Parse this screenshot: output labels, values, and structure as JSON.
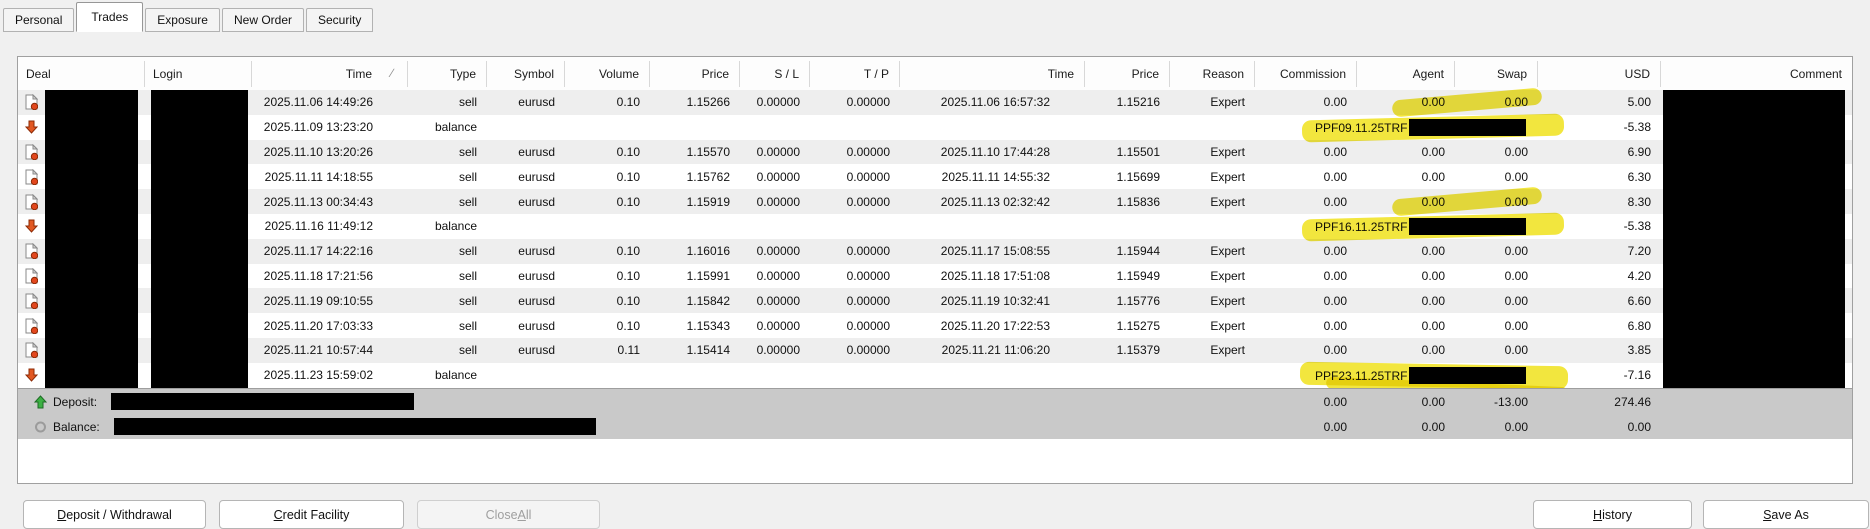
{
  "tabs": {
    "items": [
      {
        "label": "Personal",
        "active": false
      },
      {
        "label": "Trades",
        "active": true
      },
      {
        "label": "Exposure",
        "active": false
      },
      {
        "label": "New Order",
        "active": false
      },
      {
        "label": "Security",
        "active": false
      }
    ]
  },
  "table": {
    "columns": [
      "Deal",
      "Login",
      "Time",
      "Type",
      "Symbol",
      "Volume",
      "Price",
      "S / L",
      "T / P",
      "Time",
      "Price",
      "Reason",
      "Commission",
      "Agent",
      "Swap",
      "USD",
      "Comment"
    ],
    "sort_indicator": "∕",
    "rows": [
      {
        "kind": "trade",
        "time": "2025.11.06 14:49:26",
        "type": "sell",
        "symbol": "eurusd",
        "volume": "0.10",
        "price": "1.15266",
        "sl": "0.00000",
        "tp": "0.00000",
        "close_time": "2025.11.06 16:57:32",
        "close_price": "1.15216",
        "reason": "Expert",
        "commission": "0.00",
        "agent": "0.00",
        "swap": "0.00",
        "usd": "5.00"
      },
      {
        "kind": "balance",
        "time": "2025.11.09 13:23:20",
        "type": "balance",
        "ppf": "PPF09.11.25TRF",
        "usd": "-5.38"
      },
      {
        "kind": "trade",
        "time": "2025.11.10 13:20:26",
        "type": "sell",
        "symbol": "eurusd",
        "volume": "0.10",
        "price": "1.15570",
        "sl": "0.00000",
        "tp": "0.00000",
        "close_time": "2025.11.10 17:44:28",
        "close_price": "1.15501",
        "reason": "Expert",
        "commission": "0.00",
        "agent": "0.00",
        "swap": "0.00",
        "usd": "6.90"
      },
      {
        "kind": "trade",
        "time": "2025.11.11 14:18:55",
        "type": "sell",
        "symbol": "eurusd",
        "volume": "0.10",
        "price": "1.15762",
        "sl": "0.00000",
        "tp": "0.00000",
        "close_time": "2025.11.11 14:55:32",
        "close_price": "1.15699",
        "reason": "Expert",
        "commission": "0.00",
        "agent": "0.00",
        "swap": "0.00",
        "usd": "6.30"
      },
      {
        "kind": "trade",
        "time": "2025.11.13 00:34:43",
        "type": "sell",
        "symbol": "eurusd",
        "volume": "0.10",
        "price": "1.15919",
        "sl": "0.00000",
        "tp": "0.00000",
        "close_time": "2025.11.13 02:32:42",
        "close_price": "1.15836",
        "reason": "Expert",
        "commission": "0.00",
        "agent": "0.00",
        "swap": "0.00",
        "usd": "8.30"
      },
      {
        "kind": "balance",
        "time": "2025.11.16 11:49:12",
        "type": "balance",
        "ppf": "PPF16.11.25TRF",
        "usd": "-5.38"
      },
      {
        "kind": "trade",
        "time": "2025.11.17 14:22:16",
        "type": "sell",
        "symbol": "eurusd",
        "volume": "0.10",
        "price": "1.16016",
        "sl": "0.00000",
        "tp": "0.00000",
        "close_time": "2025.11.17 15:08:55",
        "close_price": "1.15944",
        "reason": "Expert",
        "commission": "0.00",
        "agent": "0.00",
        "swap": "0.00",
        "usd": "7.20"
      },
      {
        "kind": "trade",
        "time": "2025.11.18 17:21:56",
        "type": "sell",
        "symbol": "eurusd",
        "volume": "0.10",
        "price": "1.15991",
        "sl": "0.00000",
        "tp": "0.00000",
        "close_time": "2025.11.18 17:51:08",
        "close_price": "1.15949",
        "reason": "Expert",
        "commission": "0.00",
        "agent": "0.00",
        "swap": "0.00",
        "usd": "4.20"
      },
      {
        "kind": "trade",
        "time": "2025.11.19 09:10:55",
        "type": "sell",
        "symbol": "eurusd",
        "volume": "0.10",
        "price": "1.15842",
        "sl": "0.00000",
        "tp": "0.00000",
        "close_time": "2025.11.19 10:32:41",
        "close_price": "1.15776",
        "reason": "Expert",
        "commission": "0.00",
        "agent": "0.00",
        "swap": "0.00",
        "usd": "6.60"
      },
      {
        "kind": "trade",
        "time": "2025.11.20 17:03:33",
        "type": "sell",
        "symbol": "eurusd",
        "volume": "0.10",
        "price": "1.15343",
        "sl": "0.00000",
        "tp": "0.00000",
        "close_time": "2025.11.20 17:22:53",
        "close_price": "1.15275",
        "reason": "Expert",
        "commission": "0.00",
        "agent": "0.00",
        "swap": "0.00",
        "usd": "6.80"
      },
      {
        "kind": "trade",
        "time": "2025.11.21 10:57:44",
        "type": "sell",
        "symbol": "eurusd",
        "volume": "0.11",
        "price": "1.15414",
        "sl": "0.00000",
        "tp": "0.00000",
        "close_time": "2025.11.21 11:06:20",
        "close_price": "1.15379",
        "reason": "Expert",
        "commission": "0.00",
        "agent": "0.00",
        "swap": "0.00",
        "usd": "3.85"
      },
      {
        "kind": "balance",
        "time": "2025.11.23 15:59:02",
        "type": "balance",
        "ppf": "PPF23.11.25TRF",
        "usd": "-7.16"
      }
    ]
  },
  "summary": {
    "deposit": {
      "label": "Deposit:",
      "commission": "0.00",
      "agent": "0.00",
      "swap": "-13.00",
      "usd": "274.46"
    },
    "balance": {
      "label": "Balance:",
      "commission": "0.00",
      "agent": "0.00",
      "swap": "0.00",
      "usd": "0.00"
    }
  },
  "buttons": {
    "deposit_withdrawal": {
      "pre": "",
      "key": "D",
      "post": "eposit / Withdrawal"
    },
    "credit_facility": {
      "pre": "",
      "key": "C",
      "post": "redit Facility"
    },
    "close_all": {
      "pre": "Close ",
      "key": "A",
      "post": "ll",
      "disabled": true
    },
    "history": {
      "pre": "",
      "key": "H",
      "post": "istory"
    },
    "save_as": {
      "pre": "",
      "key": "S",
      "post": "ave As"
    }
  },
  "icons": {
    "trade": "document-icon",
    "balance_row": "down-arrow-icon",
    "deposit": "up-arrow-icon",
    "balance_summary": "circle-icon"
  },
  "colors": {
    "highlight": "#f0e21c",
    "redaction": "#000000",
    "row_alt": "#eeeeee",
    "summary_bg": "#c9c9c9",
    "deal_icon_red": "#e2471d",
    "deposit_green": "#3cb043"
  }
}
